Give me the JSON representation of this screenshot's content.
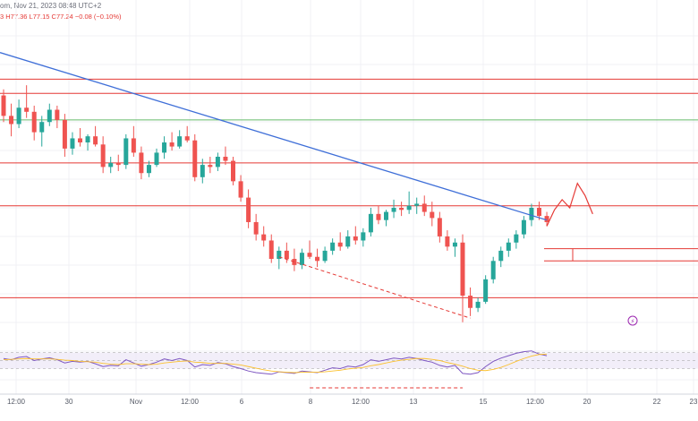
{
  "header": {
    "title_fragment": "om, Nov 21, 2023 08:48 UTC+2",
    "ohlc_fragment": "3  H77.36  L77.15  C77.24  −0.08 (−0.10%)"
  },
  "chart_data": {
    "type": "candlestick",
    "x_ticks": [
      "12:00",
      "30",
      "Nov",
      "12:00",
      "6",
      "8",
      "12:00",
      "13",
      "15",
      "12:00",
      "20",
      "22",
      "23"
    ],
    "price_range": [
      74.8,
      86.2
    ],
    "candles": [
      [
        86.0,
        86.3,
        84.7,
        85.0
      ],
      [
        85.0,
        85.6,
        84.0,
        84.6
      ],
      [
        84.6,
        85.8,
        84.4,
        85.4
      ],
      [
        85.4,
        86.5,
        84.9,
        85.2
      ],
      [
        85.2,
        85.5,
        83.8,
        84.2
      ],
      [
        84.2,
        85.0,
        83.5,
        84.7
      ],
      [
        84.7,
        85.6,
        84.5,
        85.3
      ],
      [
        85.3,
        85.5,
        84.4,
        84.8
      ],
      [
        84.8,
        85.1,
        83.0,
        83.4
      ],
      [
        83.4,
        84.2,
        83.1,
        83.9
      ],
      [
        83.9,
        84.4,
        83.5,
        83.7
      ],
      [
        83.7,
        84.1,
        83.3,
        84.0
      ],
      [
        84.0,
        84.5,
        83.5,
        83.6
      ],
      [
        83.6,
        84.0,
        82.2,
        82.5
      ],
      [
        82.5,
        83.0,
        82.2,
        82.7
      ],
      [
        82.7,
        83.1,
        82.3,
        82.6
      ],
      [
        82.6,
        84.1,
        82.4,
        83.9
      ],
      [
        83.9,
        84.5,
        83.0,
        83.2
      ],
      [
        83.2,
        83.5,
        81.9,
        82.2
      ],
      [
        82.2,
        82.8,
        82.0,
        82.6
      ],
      [
        82.6,
        83.4,
        82.5,
        83.2
      ],
      [
        83.2,
        84.0,
        82.9,
        83.7
      ],
      [
        83.7,
        84.2,
        83.3,
        83.5
      ],
      [
        83.5,
        84.3,
        83.4,
        84.0
      ],
      [
        84.0,
        84.5,
        83.7,
        83.8
      ],
      [
        83.8,
        84.1,
        81.8,
        82.0
      ],
      [
        82.0,
        82.9,
        81.7,
        82.6
      ],
      [
        82.6,
        83.0,
        82.2,
        82.5
      ],
      [
        82.5,
        83.2,
        82.3,
        83.0
      ],
      [
        83.0,
        83.5,
        82.6,
        82.8
      ],
      [
        82.8,
        83.0,
        81.6,
        81.8
      ],
      [
        81.8,
        82.1,
        80.8,
        81.0
      ],
      [
        81.0,
        81.4,
        79.5,
        79.8
      ],
      [
        79.8,
        80.2,
        78.9,
        79.2
      ],
      [
        79.2,
        79.6,
        78.6,
        78.9
      ],
      [
        78.9,
        79.2,
        77.8,
        78.0
      ],
      [
        78.0,
        78.6,
        77.5,
        78.4
      ],
      [
        78.4,
        78.8,
        77.8,
        78.0
      ],
      [
        78.0,
        78.5,
        77.4,
        77.7
      ],
      [
        77.7,
        78.5,
        77.5,
        78.3
      ],
      [
        78.3,
        78.9,
        78.0,
        78.1
      ],
      [
        78.1,
        78.5,
        77.6,
        77.9
      ],
      [
        77.9,
        78.6,
        77.8,
        78.4
      ],
      [
        78.4,
        79.0,
        78.2,
        78.8
      ],
      [
        78.8,
        79.3,
        78.4,
        78.6
      ],
      [
        78.6,
        79.4,
        78.5,
        79.1
      ],
      [
        79.1,
        79.6,
        78.7,
        78.9
      ],
      [
        78.9,
        79.5,
        78.6,
        79.3
      ],
      [
        79.3,
        80.5,
        79.1,
        80.2
      ],
      [
        80.2,
        80.6,
        79.7,
        79.9
      ],
      [
        79.9,
        80.4,
        79.6,
        80.3
      ],
      [
        80.3,
        80.9,
        80.0,
        80.5
      ],
      [
        80.5,
        80.8,
        80.1,
        80.4
      ],
      [
        80.4,
        81.3,
        80.2,
        80.6
      ],
      [
        80.6,
        81.0,
        80.2,
        80.7
      ],
      [
        80.7,
        81.1,
        80.1,
        80.3
      ],
      [
        80.3,
        80.8,
        79.6,
        80.0
      ],
      [
        80.0,
        80.3,
        78.8,
        79.1
      ],
      [
        79.1,
        79.4,
        78.4,
        78.6
      ],
      [
        78.6,
        79.0,
        78.1,
        78.8
      ],
      [
        78.8,
        79.2,
        74.9,
        76.2
      ],
      [
        76.2,
        76.6,
        75.2,
        75.6
      ],
      [
        75.6,
        76.1,
        75.4,
        75.9
      ],
      [
        75.9,
        77.2,
        75.8,
        77.0
      ],
      [
        77.0,
        78.1,
        76.8,
        77.9
      ],
      [
        77.9,
        78.6,
        77.6,
        78.4
      ],
      [
        78.4,
        79.0,
        78.1,
        78.8
      ],
      [
        78.8,
        79.4,
        78.5,
        79.2
      ],
      [
        79.2,
        80.1,
        79.0,
        79.9
      ],
      [
        79.9,
        80.7,
        79.6,
        80.5
      ],
      [
        80.5,
        80.8,
        79.9,
        80.1
      ],
      [
        80.1,
        80.3,
        79.6,
        79.8
      ]
    ],
    "levels": [
      {
        "price": 86.8,
        "color": "#e53935"
      },
      {
        "price": 86.1,
        "color": "#e53935"
      },
      {
        "price": 82.7,
        "color": "#e53935"
      },
      {
        "price": 80.6,
        "color": "#e53935"
      },
      {
        "price": 78.5,
        "color": "#e53935"
      },
      {
        "price": 77.9,
        "color": "#e53935"
      },
      {
        "price": 76.1,
        "color": "#e53935"
      },
      {
        "price": 84.8,
        "color": "#66bb6a"
      }
    ],
    "trendline": {
      "from": [
        0,
        88.1
      ],
      "to": [
        71,
        79.9
      ],
      "color": "#3f6fd8"
    },
    "lower_trendline": {
      "from": [
        36,
        78.1
      ],
      "to": [
        61,
        75.1
      ],
      "color": "#e53935"
    },
    "projection": [
      [
        71,
        79.6
      ],
      [
        72,
        80.4
      ],
      [
        73,
        80.9
      ],
      [
        74,
        80.5
      ],
      [
        75,
        81.7
      ],
      [
        76,
        81.1
      ],
      [
        77,
        80.2
      ]
    ],
    "rsi": {
      "range": [
        0,
        100
      ],
      "bands": [
        30,
        70
      ],
      "values": [
        55,
        52,
        58,
        60,
        50,
        54,
        57,
        52,
        44,
        48,
        46,
        48,
        42,
        35,
        38,
        37,
        52,
        44,
        36,
        40,
        46,
        54,
        50,
        55,
        50,
        34,
        40,
        38,
        45,
        42,
        35,
        30,
        24,
        20,
        18,
        16,
        22,
        20,
        18,
        24,
        22,
        20,
        26,
        32,
        30,
        36,
        34,
        40,
        52,
        48,
        52,
        56,
        54,
        58,
        55,
        50,
        46,
        38,
        34,
        38,
        18,
        16,
        20,
        35,
        48,
        56,
        62,
        68,
        72,
        74,
        66,
        62
      ],
      "signal": [
        52,
        53,
        54,
        55,
        54,
        54,
        54,
        53,
        51,
        50,
        48,
        47,
        46,
        43,
        41,
        40,
        42,
        42,
        41,
        40,
        41,
        44,
        46,
        48,
        49,
        46,
        45,
        43,
        43,
        43,
        41,
        39,
        35,
        31,
        27,
        24,
        22,
        21,
        20,
        21,
        21,
        21,
        22,
        24,
        26,
        29,
        31,
        33,
        37,
        40,
        44,
        48,
        51,
        53,
        55,
        55,
        53,
        50,
        45,
        41,
        36,
        30,
        26,
        25,
        28,
        33,
        40,
        48,
        55,
        61,
        65,
        66
      ],
      "divergence_line": {
        "from": [
          33,
          10
        ],
        "to": [
          60,
          10
        ],
        "color": "#e53935"
      }
    }
  }
}
